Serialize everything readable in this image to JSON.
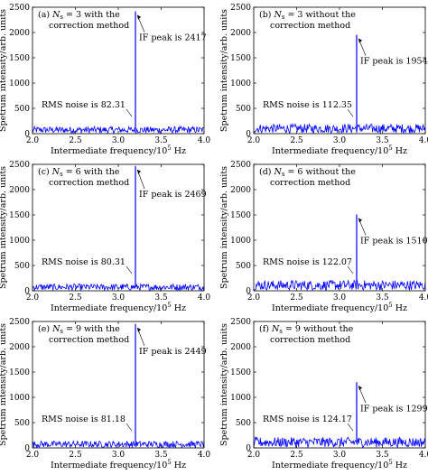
{
  "figure": {
    "ylabel": "Spetrum intensity/arb. units",
    "xlabel": "Intermediate frequency/10",
    "xlabel_exp": "5",
    "xlabel_unit": " Hz"
  },
  "chart_data": [
    {
      "type": "line",
      "panel_tag": "(a)",
      "n_value": "3",
      "title_line1_suffix": "with the",
      "title_line2": "correction method",
      "peak_label": "IF peak is 2417",
      "noise_label": "RMS noise is 82.31",
      "peak_x": 3.2,
      "peak_value": 2417,
      "noise_rms": 82.31,
      "xlim": [
        2.0,
        4.0
      ],
      "ylim": [
        0,
        2500
      ],
      "xticks": [
        "2.0",
        "2.5",
        "3.0",
        "3.5",
        "4.0"
      ],
      "yticks": [
        "0",
        "500",
        "1000",
        "1500",
        "2000",
        "2500"
      ],
      "series_color": "#0000ff"
    },
    {
      "type": "line",
      "panel_tag": "(b)",
      "n_value": "3",
      "title_line1_suffix": "without the",
      "title_line2": "correction method",
      "peak_label": "IF peak is 1954",
      "noise_label": "RMS noise is 112.35",
      "peak_x": 3.2,
      "peak_value": 1954,
      "noise_rms": 112.35,
      "xlim": [
        2.0,
        4.0
      ],
      "ylim": [
        0,
        2500
      ],
      "xticks": [
        "2.0",
        "2.5",
        "3.0",
        "3.5",
        "4.0"
      ],
      "yticks": [
        "0",
        "500",
        "1000",
        "1500",
        "2000",
        "2500"
      ],
      "series_color": "#0000ff"
    },
    {
      "type": "line",
      "panel_tag": "(c)",
      "n_value": "6",
      "title_line1_suffix": "with the",
      "title_line2": "correction method",
      "peak_label": "IF peak is 2469",
      "noise_label": "RMS noise is 80.31",
      "peak_x": 3.2,
      "peak_value": 2469,
      "noise_rms": 80.31,
      "xlim": [
        2.0,
        4.0
      ],
      "ylim": [
        0,
        2500
      ],
      "xticks": [
        "2.0",
        "2.5",
        "3.0",
        "3.5",
        "4.0"
      ],
      "yticks": [
        "0",
        "500",
        "1000",
        "1500",
        "2000",
        "2500"
      ],
      "series_color": "#0000ff"
    },
    {
      "type": "line",
      "panel_tag": "(d)",
      "n_value": "6",
      "title_line1_suffix": "without the",
      "title_line2": "correction method",
      "peak_label": "IF peak is 1510",
      "noise_label": "RMS noise is 122.07",
      "peak_x": 3.2,
      "peak_value": 1510,
      "noise_rms": 122.07,
      "xlim": [
        2.0,
        4.0
      ],
      "ylim": [
        0,
        2500
      ],
      "xticks": [
        "2.0",
        "2.5",
        "3.0",
        "3.5",
        "4.0"
      ],
      "yticks": [
        "0",
        "500",
        "1000",
        "1500",
        "2000",
        "2500"
      ],
      "series_color": "#0000ff"
    },
    {
      "type": "line",
      "panel_tag": "(e)",
      "n_value": "9",
      "title_line1_suffix": "with the",
      "title_line2": "correction method",
      "peak_label": "IF peak is 2449",
      "noise_label": "RMS noise is 81.18",
      "peak_x": 3.2,
      "peak_value": 2449,
      "noise_rms": 81.18,
      "xlim": [
        2.0,
        4.0
      ],
      "ylim": [
        0,
        2500
      ],
      "xticks": [
        "2.0",
        "2.5",
        "3.0",
        "3.5",
        "4.0"
      ],
      "yticks": [
        "0",
        "500",
        "1000",
        "1500",
        "2000",
        "2500"
      ],
      "series_color": "#0000ff"
    },
    {
      "type": "line",
      "panel_tag": "(f)",
      "n_value": "9",
      "title_line1_suffix": "without the",
      "title_line2": "correction method",
      "peak_label": "IF peak is 1299",
      "noise_label": "RMS noise is 124.17",
      "peak_x": 3.2,
      "peak_value": 1299,
      "noise_rms": 124.17,
      "xlim": [
        2.0,
        4.0
      ],
      "ylim": [
        0,
        2500
      ],
      "xticks": [
        "2.0",
        "2.5",
        "3.0",
        "3.5",
        "4.0"
      ],
      "yticks": [
        "0",
        "500",
        "1000",
        "1500",
        "2000",
        "2500"
      ],
      "series_color": "#0000ff"
    }
  ]
}
